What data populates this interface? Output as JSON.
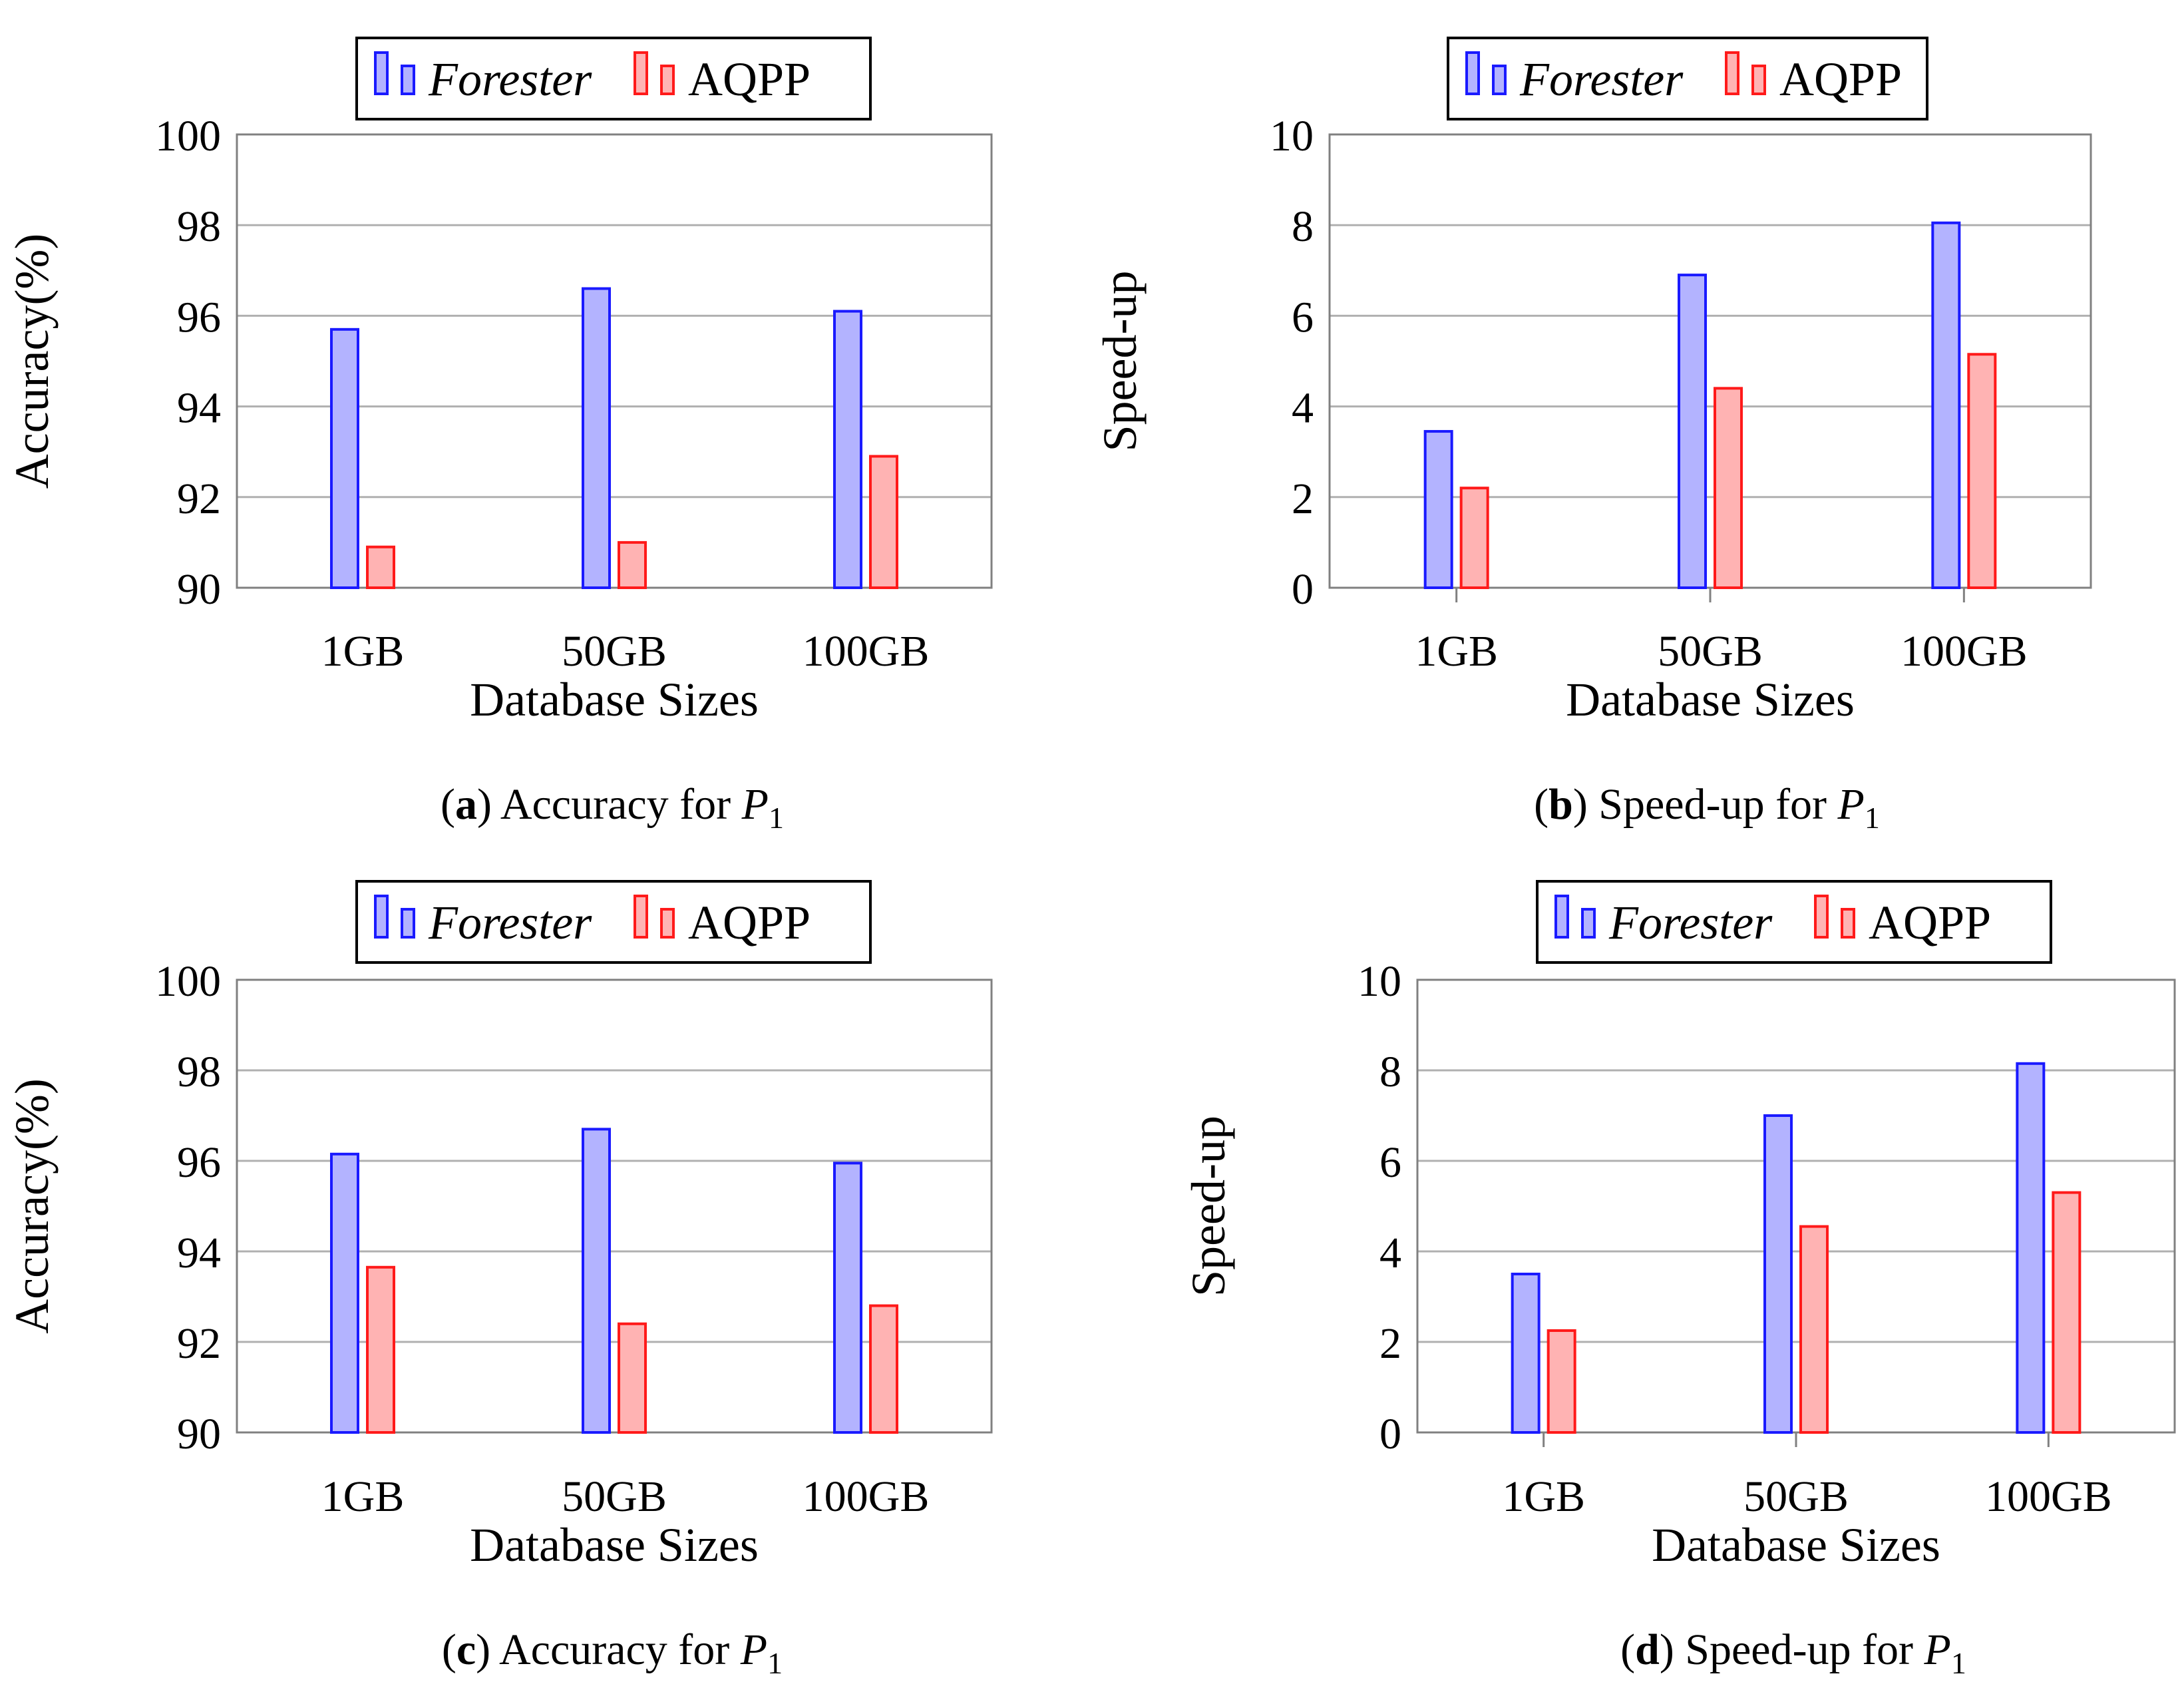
{
  "colors": {
    "forester_fill": "#b3b3ff",
    "forester_stroke": "#1a1aff",
    "aqpp_fill": "#ffb3b3",
    "aqpp_stroke": "#ff1a1a",
    "grid": "#b0b0b0",
    "axis": "#808080"
  },
  "chart_data": [
    {
      "type": "bar",
      "panel": "a",
      "caption_prefix": "a",
      "caption_text": "Accuracy for",
      "caption_var": "P",
      "caption_sub": "1",
      "categories": [
        "1GB",
        "50GB",
        "100GB"
      ],
      "series": [
        {
          "name": "Forester",
          "values": [
            95.7,
            96.6,
            96.1
          ]
        },
        {
          "name": "AQPP",
          "values": [
            90.9,
            91.0,
            92.9
          ]
        }
      ],
      "xlabel": "Database Sizes",
      "ylabel": "Accuracy(%)",
      "ylim": [
        90,
        100
      ],
      "yticks": [
        "90",
        "92",
        "94",
        "96",
        "98",
        "100"
      ],
      "grid": true,
      "legend": "top"
    },
    {
      "type": "bar",
      "panel": "b",
      "caption_prefix": "b",
      "caption_text": "Speed-up for",
      "caption_var": "P",
      "caption_sub": "1",
      "categories": [
        "1GB",
        "50GB",
        "100GB"
      ],
      "series": [
        {
          "name": "Forester",
          "values": [
            3.45,
            6.9,
            8.05
          ]
        },
        {
          "name": "AQPP",
          "values": [
            2.2,
            4.4,
            5.15
          ]
        }
      ],
      "xlabel": "Database Sizes",
      "ylabel": "Speed-up",
      "ylim": [
        0,
        10
      ],
      "yticks": [
        "0",
        "2",
        "4",
        "6",
        "8",
        "10"
      ],
      "grid": true,
      "legend": "top"
    },
    {
      "type": "bar",
      "panel": "c",
      "caption_prefix": "c",
      "caption_text": "Accuracy for",
      "caption_var": "P",
      "caption_sub": "1",
      "categories": [
        "1GB",
        "50GB",
        "100GB"
      ],
      "series": [
        {
          "name": "Forester",
          "values": [
            96.15,
            96.7,
            95.95
          ]
        },
        {
          "name": "AQPP",
          "values": [
            93.65,
            92.4,
            92.8
          ]
        }
      ],
      "xlabel": "Database Sizes",
      "ylabel": "Accuracy(%)",
      "ylim": [
        90,
        100
      ],
      "yticks": [
        "90",
        "92",
        "94",
        "96",
        "98",
        "100"
      ],
      "grid": true,
      "legend": "top"
    },
    {
      "type": "bar",
      "panel": "d",
      "caption_prefix": "d",
      "caption_text": "Speed-up for",
      "caption_var": "P",
      "caption_sub": "1",
      "categories": [
        "1GB",
        "50GB",
        "100GB"
      ],
      "series": [
        {
          "name": "Forester",
          "values": [
            3.5,
            7.0,
            8.15
          ]
        },
        {
          "name": "AQPP",
          "values": [
            2.25,
            4.55,
            5.3
          ]
        }
      ],
      "xlabel": "Database Sizes",
      "ylabel": "Speed-up",
      "ylim": [
        0,
        10
      ],
      "yticks": [
        "0",
        "2",
        "4",
        "6",
        "8",
        "10"
      ],
      "grid": true,
      "legend": "top"
    }
  ]
}
